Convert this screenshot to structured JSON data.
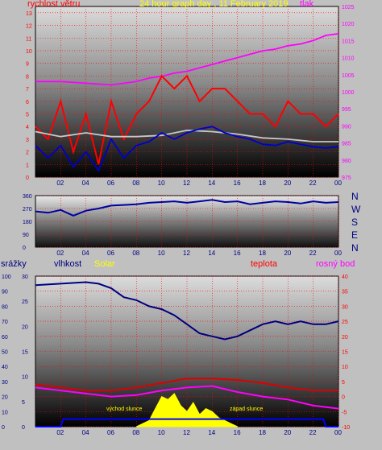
{
  "title": "24 hour graph day , 11 February 2019",
  "colors": {
    "wind_speed": "#ff0000",
    "wind_avg": "#0000cc",
    "wind_gust_avg": "#c8c8c8",
    "pressure": "#ff00ff",
    "direction": "#0000a0",
    "humidity": "#000080",
    "temperature": "#dd0000",
    "dew_point": "#ff00ff",
    "solar": "#ffff00",
    "rain": "#0000ff",
    "grid": "#ff0000",
    "text_blue": "#000080",
    "label_yellow": "#ffff00"
  },
  "x_ticks": [
    "02",
    "04",
    "06",
    "08",
    "10",
    "12",
    "14",
    "16",
    "18",
    "20",
    "22",
    "00"
  ],
  "chart_data": [
    {
      "type": "line",
      "title": "24 hour graph day , 11 February 2019",
      "left_axis_label": "rychlost větru",
      "right_axis_label": "tlak",
      "left_ticks": [
        "0",
        "1",
        "2",
        "3",
        "4",
        "5",
        "6",
        "7",
        "8",
        "9",
        "10",
        "11",
        "12",
        "13"
      ],
      "right_ticks": [
        "975",
        "980",
        "985",
        "990",
        "995",
        "1000",
        "1005",
        "1010",
        "1015",
        "1020",
        "1025"
      ],
      "x_ticks": [
        "02",
        "04",
        "06",
        "08",
        "10",
        "12",
        "14",
        "16",
        "18",
        "20",
        "22",
        "00"
      ],
      "ylim_left": [
        0,
        13.5
      ],
      "ylim_right": [
        975,
        1025
      ],
      "xlim_hours": [
        0,
        24
      ],
      "series": [
        {
          "key": "pressure",
          "axis": "right",
          "x": [
            0,
            2,
            4,
            6,
            8,
            9,
            10,
            11,
            12,
            13,
            14,
            15,
            16,
            17,
            18,
            19,
            20,
            21,
            22,
            23,
            24
          ],
          "y": [
            1003,
            1003,
            1002.5,
            1002,
            1003,
            1004,
            1004.5,
            1005.5,
            1006,
            1007,
            1008,
            1009,
            1010,
            1011,
            1012,
            1012.5,
            1013.5,
            1014,
            1015,
            1016.5,
            1017
          ]
        },
        {
          "key": "wind_speed",
          "axis": "left",
          "x": [
            0,
            1,
            2,
            3,
            4,
            5,
            6,
            7,
            8,
            9,
            10,
            11,
            12,
            13,
            14,
            15,
            16,
            17,
            18,
            19,
            20,
            21,
            22,
            23,
            24
          ],
          "y": [
            4,
            3,
            6,
            2,
            5,
            1,
            6,
            3,
            5,
            6,
            8,
            7,
            8,
            6,
            7,
            7,
            6,
            5,
            5,
            4,
            6,
            5,
            5,
            4,
            5
          ]
        },
        {
          "key": "wind_gust_avg",
          "axis": "left",
          "x": [
            0,
            2,
            4,
            6,
            8,
            10,
            12,
            14,
            16,
            18,
            20,
            22,
            24
          ],
          "y": [
            3.6,
            3.2,
            3.5,
            3.2,
            3.2,
            3.3,
            3.7,
            3.6,
            3.4,
            3.1,
            3.0,
            2.8,
            2.8
          ]
        },
        {
          "key": "wind_avg",
          "axis": "left",
          "x": [
            0,
            1,
            2,
            3,
            4,
            5,
            6,
            7,
            8,
            9,
            10,
            11,
            12,
            13,
            14,
            15,
            16,
            17,
            18,
            19,
            20,
            21,
            22,
            23,
            24
          ],
          "y": [
            2.5,
            1.5,
            2.5,
            0.8,
            2,
            0.5,
            3,
            1.5,
            2.5,
            2.8,
            3.5,
            3,
            3.5,
            3.8,
            4,
            3.5,
            3.2,
            3,
            2.6,
            2.5,
            2.8,
            2.6,
            2.4,
            2.3,
            2.4
          ]
        }
      ]
    },
    {
      "type": "line",
      "title": "",
      "direction_labels": [
        "N",
        "W",
        "S",
        "E",
        "N"
      ],
      "left_ticks": [
        "0",
        "90",
        "180",
        "270",
        "360"
      ],
      "x_ticks": [
        "02",
        "04",
        "06",
        "08",
        "10",
        "12",
        "14",
        "16",
        "18",
        "20",
        "22",
        "00"
      ],
      "ylim": [
        0,
        360
      ],
      "xlim_hours": [
        0,
        24
      ],
      "series": [
        {
          "key": "direction",
          "x": [
            0,
            1,
            2,
            3,
            4,
            5,
            6,
            7,
            8,
            9,
            10,
            11,
            12,
            13,
            14,
            15,
            16,
            17,
            18,
            19,
            20,
            21,
            22,
            23,
            24
          ],
          "y": [
            250,
            240,
            260,
            220,
            255,
            270,
            290,
            295,
            300,
            310,
            315,
            320,
            310,
            320,
            330,
            315,
            320,
            300,
            310,
            320,
            315,
            305,
            320,
            310,
            315
          ]
        }
      ]
    },
    {
      "type": "line",
      "title": "",
      "legend": [
        "srážky",
        "vlhkost",
        "Solar",
        "teplota",
        "rosný bod"
      ],
      "label_sunrise": "východ slunce",
      "label_sunset": "západ slunce",
      "left_ticks_rain": [
        "0",
        "10",
        "20",
        "30",
        "40",
        "50",
        "60",
        "70",
        "80",
        "90",
        "100"
      ],
      "left_ticks_hum": [
        "0",
        "5",
        "10",
        "15",
        "20",
        "25",
        "30"
      ],
      "right_ticks": [
        "-10",
        "-5",
        "0",
        "5",
        "10",
        "15",
        "20",
        "25",
        "30",
        "35",
        "40"
      ],
      "x_ticks": [
        "02",
        "04",
        "06",
        "08",
        "10",
        "12",
        "14",
        "16",
        "18",
        "20",
        "22",
        "00"
      ],
      "ylim_right": [
        -10,
        40
      ],
      "xlim_hours": [
        0,
        24
      ],
      "series": [
        {
          "key": "humidity",
          "axis": "right",
          "x": [
            0,
            2,
            4,
            5,
            6,
            7,
            8,
            9,
            10,
            11,
            12,
            13,
            14,
            15,
            16,
            17,
            18,
            19,
            20,
            21,
            22,
            23,
            24
          ],
          "y": [
            37,
            37.5,
            38,
            37.5,
            36,
            33,
            32,
            30,
            29,
            27,
            24,
            21,
            20,
            19,
            20,
            22,
            24,
            25,
            24,
            25,
            24,
            24,
            25
          ]
        },
        {
          "key": "temperature",
          "axis": "right",
          "x": [
            0,
            2,
            4,
            6,
            8,
            10,
            12,
            14,
            16,
            18,
            20,
            22,
            24
          ],
          "y": [
            4,
            3,
            2,
            2,
            3,
            4.5,
            6,
            6,
            5.5,
            4.5,
            3,
            2,
            2
          ]
        },
        {
          "key": "dew_point",
          "axis": "right",
          "x": [
            0,
            2,
            4,
            6,
            8,
            10,
            12,
            14,
            16,
            18,
            20,
            22,
            24
          ],
          "y": [
            3,
            2,
            1,
            0,
            0.5,
            2,
            3,
            3.5,
            1.5,
            0,
            -1,
            -3,
            -4
          ]
        },
        {
          "key": "solar",
          "axis": "right",
          "x": [
            8,
            9,
            9.5,
            10,
            10.5,
            11,
            11.5,
            12,
            12.5,
            13,
            13.5,
            14,
            14.5,
            15,
            15.5,
            16
          ],
          "y": [
            -10,
            -8,
            -4,
            0,
            -1,
            1,
            -3,
            -5,
            -2,
            -6,
            -4,
            -5,
            -7,
            -8,
            -9,
            -10
          ]
        },
        {
          "key": "rain",
          "axis": "right",
          "x": [
            0,
            2,
            2.2,
            22.8,
            23,
            24
          ],
          "y": [
            -10,
            -10,
            -7.5,
            -7.5,
            -10,
            -10
          ]
        }
      ]
    }
  ]
}
